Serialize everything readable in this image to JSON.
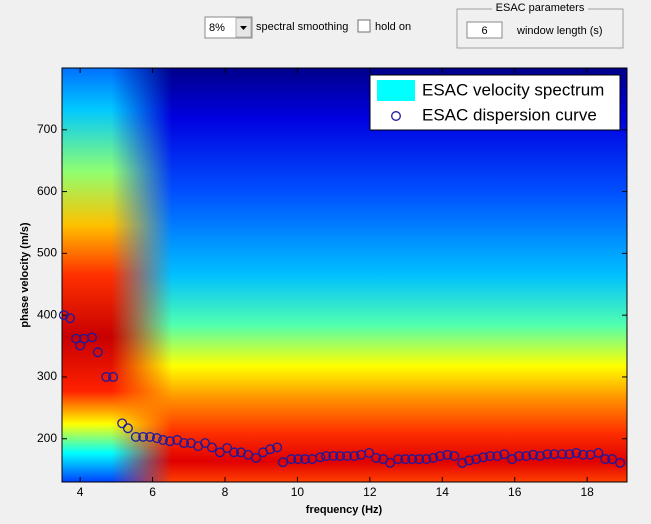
{
  "ui": {
    "smoothing_select": "8%",
    "smoothing_label": "spectral smoothing",
    "hold_label": "hold on",
    "esac_group_title": "ESAC parameters",
    "window_length_input": "6",
    "window_length_label": "window length (s)"
  },
  "chart_data": {
    "type": "scatter",
    "colormap": "jet",
    "xlabel": "frequency (Hz)",
    "ylabel": "phase velocity (m/s)",
    "xlim": [
      3.5,
      19.1
    ],
    "ylim": [
      130,
      800
    ],
    "xticks": [
      4,
      6,
      8,
      10,
      12,
      14,
      16,
      18
    ],
    "yticks": [
      200,
      300,
      400,
      500,
      600,
      700
    ],
    "legend": "upper right",
    "spectrum": {
      "name": "ESAC velocity spectrum",
      "color": "#00ffff"
    },
    "series": [
      {
        "name": "ESAC dispersion curve",
        "color": "#1a1aa0",
        "marker": "o",
        "x": [
          3.55,
          3.72,
          3.89,
          4.0,
          4.11,
          4.33,
          4.49,
          4.72,
          4.91,
          5.16,
          5.32,
          5.54,
          5.74,
          5.93,
          6.12,
          6.29,
          6.48,
          6.68,
          6.87,
          7.06,
          7.26,
          7.45,
          7.64,
          7.86,
          8.06,
          8.25,
          8.44,
          8.64,
          8.86,
          9.05,
          9.25,
          9.44,
          9.6,
          9.83,
          10.02,
          10.21,
          10.41,
          10.63,
          10.79,
          10.99,
          11.18,
          11.37,
          11.57,
          11.76,
          11.98,
          12.17,
          12.37,
          12.56,
          12.78,
          12.98,
          13.17,
          13.36,
          13.56,
          13.75,
          13.94,
          14.14,
          14.33,
          14.55,
          14.74,
          14.94,
          15.13,
          15.32,
          15.52,
          15.71,
          15.93,
          16.12,
          16.32,
          16.51,
          16.7,
          16.9,
          17.09,
          17.31,
          17.51,
          17.7,
          17.89,
          18.09,
          18.31,
          18.5,
          18.69,
          18.91
        ],
        "values": [
          400,
          395,
          362,
          351,
          362,
          364,
          340,
          300,
          300,
          225,
          217,
          203,
          203,
          203,
          201,
          198,
          196,
          198,
          193,
          193,
          188,
          193,
          186,
          178,
          185,
          178,
          178,
          174,
          169,
          178,
          183,
          186,
          162,
          167,
          167,
          167,
          167,
          170,
          172,
          172,
          172,
          172,
          172,
          174,
          177,
          169,
          167,
          161,
          167,
          167,
          167,
          167,
          167,
          169,
          172,
          174,
          172,
          161,
          165,
          167,
          170,
          172,
          172,
          175,
          167,
          172,
          172,
          174,
          172,
          175,
          175,
          175,
          175,
          177,
          174,
          174,
          177,
          167,
          167,
          161
        ]
      }
    ]
  }
}
